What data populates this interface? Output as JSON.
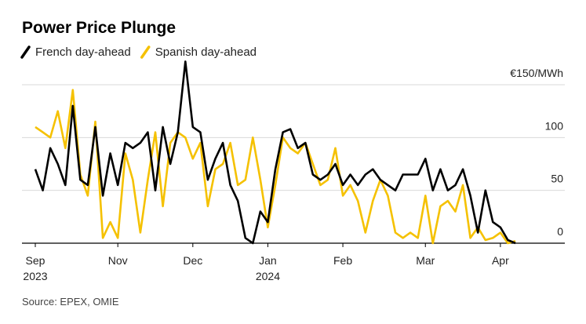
{
  "chart_data": {
    "type": "line",
    "title": "Power Price Plunge",
    "source": "Source: EPEX, OMIE",
    "categories": [
      "Sep 2023",
      null,
      null,
      null,
      null,
      null,
      null,
      null,
      null,
      null,
      null,
      "Nov",
      null,
      null,
      null,
      null,
      null,
      null,
      null,
      null,
      null,
      "Dec",
      null,
      null,
      null,
      null,
      null,
      null,
      null,
      null,
      null,
      "Jan 2024",
      null,
      null,
      null,
      null,
      null,
      null,
      null,
      null,
      null,
      "Feb",
      null,
      null,
      null,
      null,
      null,
      null,
      null,
      null,
      null,
      null,
      "Mar",
      null,
      null,
      null,
      null,
      null,
      null,
      null,
      null,
      null,
      "Apr",
      null,
      null
    ],
    "series": [
      {
        "name": "French day-ahead",
        "color": "#000000",
        "values": [
          70,
          50,
          90,
          75,
          55,
          130,
          60,
          55,
          110,
          45,
          85,
          55,
          95,
          90,
          95,
          105,
          50,
          110,
          75,
          105,
          172,
          110,
          105,
          60,
          80,
          95,
          55,
          40,
          5,
          0,
          30,
          20,
          70,
          105,
          108,
          90,
          95,
          65,
          60,
          65,
          75,
          55,
          65,
          55,
          65,
          70,
          60,
          55,
          50,
          65,
          65,
          65,
          80,
          50,
          70,
          50,
          55,
          70,
          45,
          10,
          50,
          20,
          15,
          3,
          0
        ]
      },
      {
        "name": "Spanish day-ahead",
        "color": "#f5c100",
        "values": [
          110,
          105,
          100,
          125,
          90,
          145,
          65,
          45,
          115,
          5,
          20,
          5,
          85,
          60,
          10,
          60,
          105,
          35,
          95,
          105,
          100,
          80,
          95,
          35,
          70,
          75,
          95,
          55,
          60,
          100,
          60,
          15,
          55,
          100,
          90,
          85,
          95,
          75,
          55,
          60,
          90,
          45,
          55,
          40,
          10,
          40,
          60,
          45,
          10,
          5,
          10,
          5,
          45,
          0,
          35,
          40,
          30,
          55,
          5,
          15,
          3,
          5,
          10,
          0,
          2
        ]
      }
    ],
    "ylim": [
      0,
      150
    ],
    "yticks": [
      0,
      50,
      100,
      {
        "value": 150,
        "label": "€150/MWh"
      }
    ],
    "grid": true
  }
}
